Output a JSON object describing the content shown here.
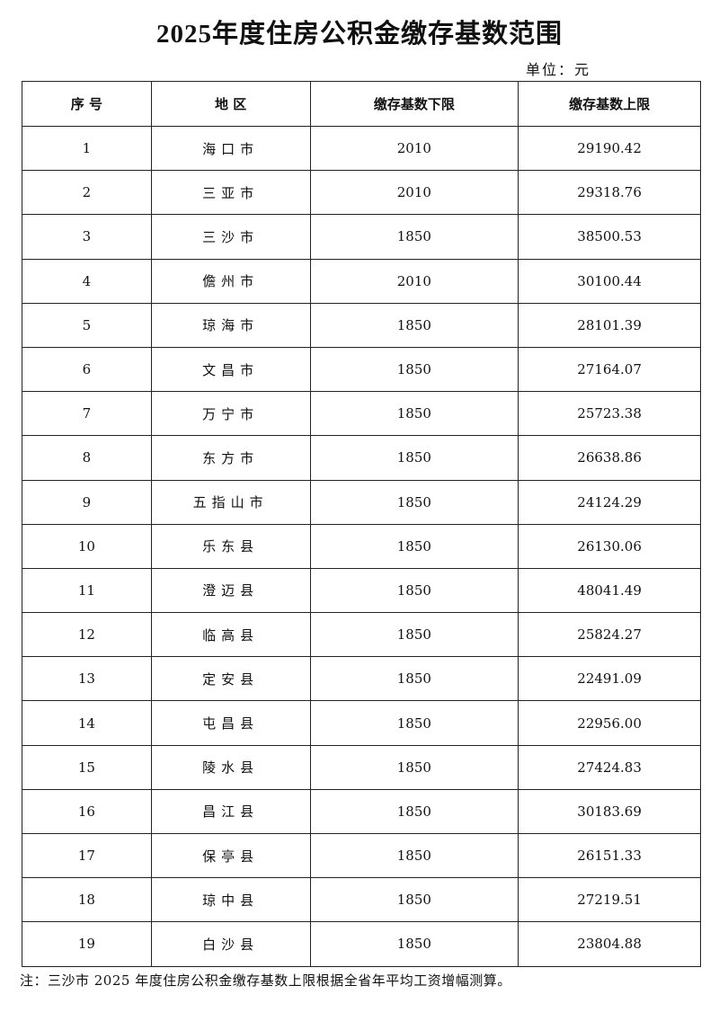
{
  "title": "2025年度住房公积金缴存基数范围",
  "unit": "单位：元",
  "table": {
    "headers": [
      "序 号",
      "地 区",
      "缴存基数下限",
      "缴存基数上限"
    ],
    "rows": [
      [
        "1",
        "海口市",
        "2010",
        "29190.42"
      ],
      [
        "2",
        "三亚市",
        "2010",
        "29318.76"
      ],
      [
        "3",
        "三沙市",
        "1850",
        "38500.53"
      ],
      [
        "4",
        "儋州市",
        "2010",
        "30100.44"
      ],
      [
        "5",
        "琼海市",
        "1850",
        "28101.39"
      ],
      [
        "6",
        "文昌市",
        "1850",
        "27164.07"
      ],
      [
        "7",
        "万宁市",
        "1850",
        "25723.38"
      ],
      [
        "8",
        "东方市",
        "1850",
        "26638.86"
      ],
      [
        "9",
        "五指山市",
        "1850",
        "24124.29"
      ],
      [
        "10",
        "乐东县",
        "1850",
        "26130.06"
      ],
      [
        "11",
        "澄迈县",
        "1850",
        "48041.49"
      ],
      [
        "12",
        "临高县",
        "1850",
        "25824.27"
      ],
      [
        "13",
        "定安县",
        "1850",
        "22491.09"
      ],
      [
        "14",
        "屯昌县",
        "1850",
        "22956.00"
      ],
      [
        "15",
        "陵水县",
        "1850",
        "27424.83"
      ],
      [
        "16",
        "昌江县",
        "1850",
        "30183.69"
      ],
      [
        "17",
        "保亭县",
        "1850",
        "26151.33"
      ],
      [
        "18",
        "琼中县",
        "1850",
        "27219.51"
      ],
      [
        "19",
        "白沙县",
        "1850",
        "23804.88"
      ]
    ]
  },
  "note": "注：三沙市 2025 年度住房公积金缴存基数上限根据全省年平均工资增幅测算。"
}
